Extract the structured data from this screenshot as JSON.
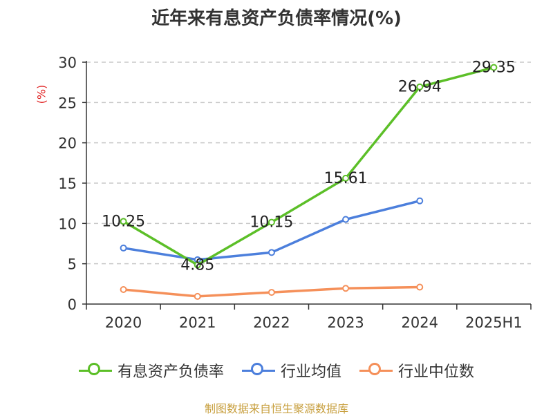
{
  "chart_data": {
    "type": "line",
    "title": "近年来有息资产负债率情况(%)",
    "ylabel": "(%)",
    "xlabel": "",
    "categories": [
      "2020",
      "2021",
      "2022",
      "2023",
      "2024",
      "2025H1"
    ],
    "ylim": [
      0,
      30
    ],
    "yticks": [
      0,
      5,
      10,
      15,
      20,
      25,
      30
    ],
    "grid": true,
    "legend_position": "bottom",
    "series": [
      {
        "name": "有息资产负债率",
        "color": "#5cbf28",
        "values": [
          10.25,
          4.85,
          10.15,
          15.61,
          26.94,
          29.35
        ],
        "labels": [
          "10.25",
          "4.85",
          "10.15",
          "15.61",
          "26.94",
          "29.35"
        ]
      },
      {
        "name": "行业均值",
        "color": "#4c7fdc",
        "values": [
          6.95,
          5.5,
          6.4,
          10.5,
          12.8,
          null
        ]
      },
      {
        "name": "行业中位数",
        "color": "#f5905a",
        "values": [
          1.8,
          0.95,
          1.45,
          1.95,
          2.1,
          null
        ]
      }
    ]
  },
  "source_note": "制图数据来自恒生聚源数据库"
}
